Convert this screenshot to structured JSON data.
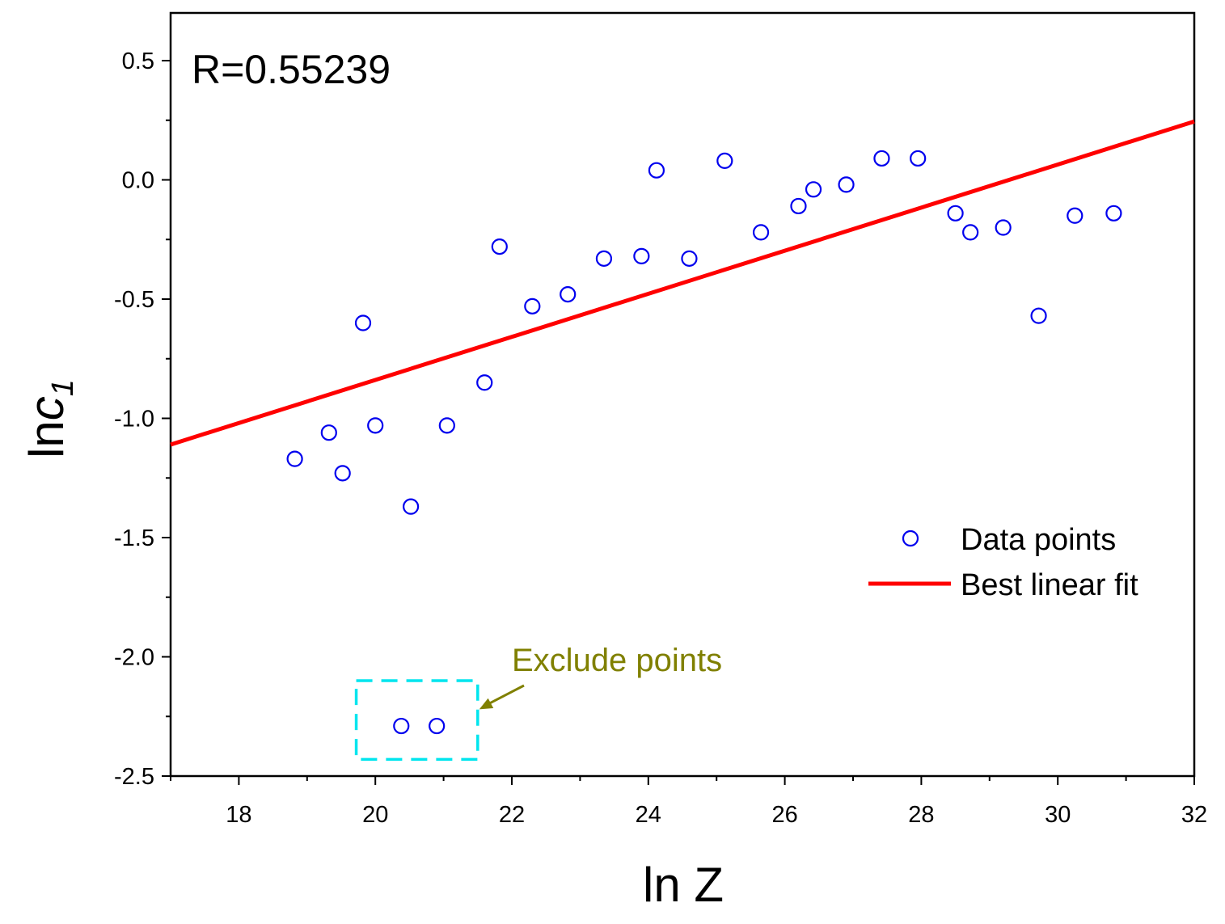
{
  "chart_data": {
    "type": "scatter",
    "title": "",
    "xlabel": "ln Z",
    "ylabel": {
      "prefix": "ln",
      "var": "c",
      "sub": "1"
    },
    "xlim": [
      17,
      32
    ],
    "ylim": [
      -2.5,
      0.7
    ],
    "x_ticks": [
      18,
      20,
      22,
      24,
      26,
      28,
      30,
      32
    ],
    "x_tick_labels": [
      "18",
      "20",
      "22",
      "24",
      "26",
      "28",
      "30",
      "32"
    ],
    "y_ticks": [
      -2.5,
      -2.0,
      -1.5,
      -1.0,
      -0.5,
      0.0,
      0.5
    ],
    "y_tick_labels": [
      "-2.5",
      "-2.0",
      "-1.5",
      "-1.0",
      "-0.5",
      "0.0",
      "0.5"
    ],
    "grid": false,
    "series": [
      {
        "name": "Data points",
        "kind": "scatter",
        "color": "#0000ee",
        "points": [
          [
            18.82,
            -1.17
          ],
          [
            19.32,
            -1.06
          ],
          [
            19.52,
            -1.23
          ],
          [
            19.82,
            -0.6
          ],
          [
            20.0,
            -1.03
          ],
          [
            20.52,
            -1.37
          ],
          [
            21.05,
            -1.03
          ],
          [
            21.6,
            -0.85
          ],
          [
            21.82,
            -0.28
          ],
          [
            22.3,
            -0.53
          ],
          [
            22.82,
            -0.48
          ],
          [
            23.35,
            -0.33
          ],
          [
            23.9,
            -0.32
          ],
          [
            24.12,
            0.04
          ],
          [
            24.6,
            -0.33
          ],
          [
            25.12,
            0.08
          ],
          [
            25.65,
            -0.22
          ],
          [
            26.2,
            -0.11
          ],
          [
            26.42,
            -0.04
          ],
          [
            26.9,
            -0.02
          ],
          [
            27.42,
            0.09
          ],
          [
            27.95,
            0.09
          ],
          [
            28.5,
            -0.14
          ],
          [
            28.72,
            -0.22
          ],
          [
            29.2,
            -0.2
          ],
          [
            29.72,
            -0.57
          ],
          [
            30.25,
            -0.15
          ],
          [
            30.82,
            -0.14
          ],
          [
            20.38,
            -2.29
          ],
          [
            20.9,
            -2.29
          ]
        ]
      },
      {
        "name": "Best linear fit",
        "kind": "line",
        "color": "#ff0000",
        "points": [
          [
            17,
            -1.11
          ],
          [
            32,
            0.245
          ]
        ]
      }
    ],
    "annotations": {
      "r_label": "R=0.55239",
      "exclude_label": "Exclude points",
      "exclude_points": [
        [
          20.38,
          -2.29
        ],
        [
          20.9,
          -2.29
        ]
      ],
      "exclude_box": {
        "x0": 19.72,
        "x1": 21.5,
        "y0": -2.43,
        "y1": -2.1
      },
      "exclude_box_color": "#00e5ee",
      "exclude_text_color": "#808000"
    },
    "legend": {
      "position": "lower-right",
      "entries": [
        "Data points",
        "Best linear fit"
      ]
    }
  }
}
